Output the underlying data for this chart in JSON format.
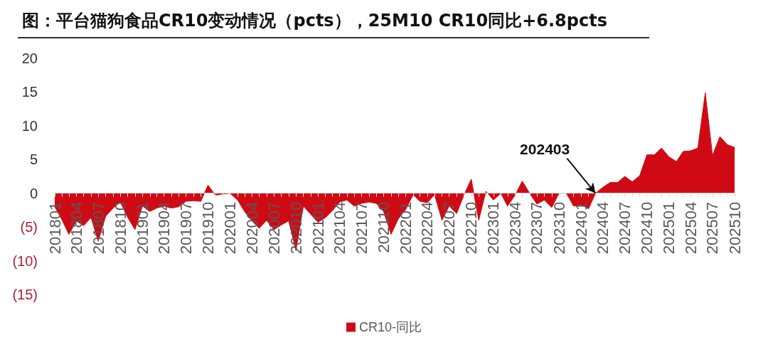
{
  "chart_data": {
    "type": "area",
    "title": "图：平台猫狗食品CR10变动情况（pcts），25M10 CR10同比+6.8pcts",
    "x": [
      "2018-01",
      "2018-02",
      "2018-03",
      "2018-04",
      "2018-05",
      "2018-06",
      "2018-07",
      "2018-08",
      "2018-09",
      "2018-10",
      "2018-11",
      "2018-12",
      "2019-01",
      "2019-02",
      "2019-03",
      "2019-04",
      "2019-05",
      "2019-06",
      "2019-07",
      "2019-08",
      "2019-09",
      "2019-10",
      "2019-11",
      "2019-12",
      "2020-01",
      "2020-02",
      "2020-03",
      "2020-04",
      "2020-05",
      "2020-06",
      "2020-07",
      "2020-08",
      "2020-09",
      "2020-10",
      "2020-11",
      "2020-12",
      "2021-01",
      "2021-02",
      "2021-03",
      "2021-04",
      "2021-05",
      "2021-06",
      "2021-07",
      "2021-08",
      "2021-09",
      "2021-10",
      "2021-11",
      "2021-12",
      "2022-01",
      "2022-02",
      "2022-03",
      "2022-04",
      "2022-05",
      "2022-06",
      "2022-07",
      "2022-08",
      "2022-09",
      "2022-10",
      "2022-11",
      "2022-12",
      "2023-01",
      "2023-02",
      "2023-03",
      "2023-04",
      "2023-05",
      "2023-06",
      "2023-07",
      "2023-08",
      "2023-09",
      "2023-10",
      "2023-11",
      "2023-12",
      "2024-01",
      "2024-02",
      "2024-03",
      "2024-04",
      "2024-05",
      "2024-06",
      "2024-07",
      "2024-08",
      "2024-09",
      "2024-10",
      "2024-11",
      "2024-12",
      "2025-01",
      "2025-02",
      "2025-03",
      "2025-04",
      "2025-05",
      "2025-06",
      "2025-07",
      "2025-08",
      "2025-09",
      "2025-10"
    ],
    "series": [
      {
        "name": "CR10-同比",
        "color": "#d00a14",
        "values": [
          -2,
          -4,
          -6.1,
          -4.1,
          -4.8,
          -3.6,
          -7.1,
          -3.4,
          -2.2,
          -1.3,
          -3.6,
          -5.4,
          -1.9,
          -2.7,
          -2.2,
          -1.9,
          -2.2,
          -2,
          -1.2,
          -1.1,
          -1.2,
          1.2,
          -0.3,
          -0.1,
          0,
          -1,
          -2.7,
          -4.1,
          -5.2,
          -4,
          -5.4,
          -4.7,
          -4.1,
          -8.5,
          -1.9,
          -3.1,
          -4.3,
          -3.6,
          -2.6,
          -1.3,
          -1,
          -1.9,
          -1.5,
          -1.3,
          -1.5,
          -2.7,
          -6.1,
          -3.8,
          -2.4,
          -0.2,
          -1.2,
          -1.4,
          -0.2,
          -4,
          -1.9,
          -3,
          -0.2,
          2.1,
          -4,
          0.3,
          -1,
          0,
          -1.9,
          -0.3,
          1.8,
          0,
          -1.6,
          -1,
          -2.1,
          0,
          0,
          -1.9,
          -1.7,
          -2.3,
          0,
          0.9,
          1.6,
          1.6,
          2.5,
          1.7,
          2.6,
          5.7,
          5.7,
          6.7,
          5.4,
          4.7,
          6.2,
          6.3,
          6.7,
          14.9,
          5.6,
          8.4,
          7.2,
          6.8
        ]
      }
    ],
    "xlim": [
      "2018-01",
      "2025-10"
    ],
    "xticks": [
      {
        "value": "2018-01",
        "label": "201801"
      },
      {
        "value": "2018-02",
        "label": null
      },
      {
        "value": "2018-03",
        "label": null
      },
      {
        "value": "2018-04",
        "label": "201804"
      },
      {
        "value": "2018-05",
        "label": null
      },
      {
        "value": "2018-06",
        "label": null
      },
      {
        "value": "2018-07",
        "label": "201807"
      },
      {
        "value": "2018-08",
        "label": null
      },
      {
        "value": "2018-09",
        "label": null
      },
      {
        "value": "2018-10",
        "label": "201810"
      },
      {
        "value": "2018-11",
        "label": null
      },
      {
        "value": "2018-12",
        "label": null
      },
      {
        "value": "2019-01",
        "label": "201901"
      },
      {
        "value": "2019-02",
        "label": null
      },
      {
        "value": "2019-03",
        "label": null
      },
      {
        "value": "2019-04",
        "label": "201904"
      },
      {
        "value": "2019-05",
        "label": null
      },
      {
        "value": "2019-06",
        "label": null
      },
      {
        "value": "2019-07",
        "label": "201907"
      },
      {
        "value": "2019-08",
        "label": null
      },
      {
        "value": "2019-09",
        "label": null
      },
      {
        "value": "2019-10",
        "label": "201910"
      },
      {
        "value": "2019-11",
        "label": null
      },
      {
        "value": "2019-12",
        "label": null
      },
      {
        "value": "2020-01",
        "label": "202001"
      },
      {
        "value": "2020-02",
        "label": null
      },
      {
        "value": "2020-03",
        "label": null
      },
      {
        "value": "2020-04",
        "label": "202004"
      },
      {
        "value": "2020-05",
        "label": null
      },
      {
        "value": "2020-06",
        "label": null
      },
      {
        "value": "2020-07",
        "label": "202007"
      },
      {
        "value": "2020-08",
        "label": null
      },
      {
        "value": "2020-09",
        "label": null
      },
      {
        "value": "2020-10",
        "label": "202010"
      },
      {
        "value": "2020-11",
        "label": null
      },
      {
        "value": "2020-12",
        "label": null
      },
      {
        "value": "2021-01",
        "label": "202101"
      },
      {
        "value": "2021-02",
        "label": null
      },
      {
        "value": "2021-03",
        "label": null
      },
      {
        "value": "2021-04",
        "label": "202104"
      },
      {
        "value": "2021-05",
        "label": null
      },
      {
        "value": "2021-06",
        "label": null
      },
      {
        "value": "2021-07",
        "label": "202107"
      },
      {
        "value": "2021-08",
        "label": null
      },
      {
        "value": "2021-09",
        "label": null
      },
      {
        "value": "2021-10",
        "label": "202110"
      },
      {
        "value": "2021-11",
        "label": null
      },
      {
        "value": "2021-12",
        "label": null
      },
      {
        "value": "2022-01",
        "label": "202201"
      },
      {
        "value": "2022-02",
        "label": null
      },
      {
        "value": "2022-03",
        "label": null
      },
      {
        "value": "2022-04",
        "label": "202204"
      },
      {
        "value": "2022-05",
        "label": null
      },
      {
        "value": "2022-06",
        "label": null
      },
      {
        "value": "2022-07",
        "label": "202207"
      },
      {
        "value": "2022-08",
        "label": null
      },
      {
        "value": "2022-09",
        "label": null
      },
      {
        "value": "2022-10",
        "label": "202210"
      },
      {
        "value": "2022-11",
        "label": null
      },
      {
        "value": "2022-12",
        "label": null
      },
      {
        "value": "2023-01",
        "label": "202301"
      },
      {
        "value": "2023-02",
        "label": null
      },
      {
        "value": "2023-03",
        "label": null
      },
      {
        "value": "2023-04",
        "label": "202304"
      },
      {
        "value": "2023-05",
        "label": null
      },
      {
        "value": "2023-06",
        "label": null
      },
      {
        "value": "2023-07",
        "label": "202307"
      },
      {
        "value": "2023-08",
        "label": null
      },
      {
        "value": "2023-09",
        "label": null
      },
      {
        "value": "2023-10",
        "label": "202310"
      },
      {
        "value": "2023-11",
        "label": null
      },
      {
        "value": "2023-12",
        "label": null
      },
      {
        "value": "2024-01",
        "label": "202401"
      },
      {
        "value": "2024-02",
        "label": null
      },
      {
        "value": "2024-03",
        "label": null
      },
      {
        "value": "2024-04",
        "label": "202404"
      },
      {
        "value": "2024-05",
        "label": null
      },
      {
        "value": "2024-06",
        "label": null
      },
      {
        "value": "2024-07",
        "label": "202407"
      },
      {
        "value": "2024-08",
        "label": null
      },
      {
        "value": "2024-09",
        "label": null
      },
      {
        "value": "2024-10",
        "label": "202410"
      },
      {
        "value": "2024-11",
        "label": null
      },
      {
        "value": "2024-12",
        "label": null
      },
      {
        "value": "2025-01",
        "label": "202501"
      },
      {
        "value": "2025-02",
        "label": null
      },
      {
        "value": "2025-03",
        "label": null
      },
      {
        "value": "2025-04",
        "label": "202504"
      },
      {
        "value": "2025-05",
        "label": null
      },
      {
        "value": "2025-06",
        "label": null
      },
      {
        "value": "2025-07",
        "label": "202507"
      },
      {
        "value": "2025-08",
        "label": null
      },
      {
        "value": "2025-09",
        "label": null
      },
      {
        "value": "2025-10",
        "label": "202510"
      }
    ],
    "ylim": [
      -15,
      20
    ],
    "yticks": [
      {
        "value": -15,
        "label": "(15)"
      },
      {
        "value": -10,
        "label": "(10)"
      },
      {
        "value": -5,
        "label": "(5)"
      },
      0,
      5,
      10,
      15,
      20
    ],
    "annotations": [
      {
        "text": "202403",
        "x": "2024-03",
        "y": 0
      }
    ],
    "legend": "bottom"
  }
}
